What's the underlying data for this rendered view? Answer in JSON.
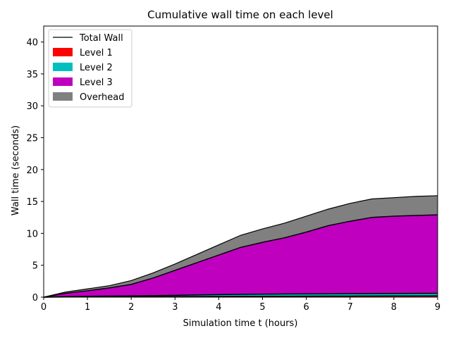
{
  "chart_data": {
    "type": "area",
    "title": "Cumulative wall time on each level",
    "xlabel": "Simulation time t (hours)",
    "ylabel": "Wall time (seconds)",
    "xlim": [
      0,
      9
    ],
    "ylim": [
      0,
      42.5
    ],
    "xticks": [
      0,
      1,
      2,
      3,
      4,
      5,
      6,
      7,
      8,
      9
    ],
    "yticks": [
      0,
      5,
      10,
      15,
      20,
      25,
      30,
      35,
      40
    ],
    "grid": false,
    "legend_position": "upper-left",
    "stacked": true,
    "x": [
      0,
      0.5,
      1,
      1.5,
      2,
      2.5,
      3,
      3.5,
      4,
      4.5,
      5,
      5.5,
      6,
      6.5,
      7,
      7.5,
      8,
      8.5,
      9
    ],
    "series": [
      {
        "name": "Level 1",
        "color": "#ff0000",
        "values": [
          0,
          0.03,
          0.05,
          0.06,
          0.07,
          0.08,
          0.09,
          0.1,
          0.11,
          0.12,
          0.13,
          0.14,
          0.15,
          0.16,
          0.17,
          0.18,
          0.19,
          0.2,
          0.21
        ]
      },
      {
        "name": "Level 2",
        "color": "#00bfbf",
        "values": [
          0,
          0.05,
          0.08,
          0.1,
          0.13,
          0.15,
          0.2,
          0.25,
          0.29,
          0.32,
          0.34,
          0.35,
          0.36,
          0.37,
          0.38,
          0.38,
          0.39,
          0.39,
          0.39
        ]
      },
      {
        "name": "Level 3",
        "color": "#bf00bf",
        "values": [
          0,
          0.52,
          0.87,
          1.29,
          1.8,
          2.77,
          3.91,
          5.05,
          6.2,
          7.36,
          8.13,
          8.81,
          9.69,
          10.67,
          11.35,
          11.94,
          12.12,
          12.21,
          12.3
        ]
      },
      {
        "name": "Overhead",
        "color": "#808080",
        "values": [
          0,
          0.2,
          0.3,
          0.35,
          0.6,
          0.8,
          1.0,
          1.3,
          1.6,
          1.9,
          2.1,
          2.3,
          2.5,
          2.6,
          2.8,
          2.9,
          2.9,
          3.0,
          3.0
        ]
      }
    ],
    "total_line": {
      "name": "Total Wall",
      "color": "#000000"
    },
    "legend_entries": [
      "Total Wall",
      "Level 1",
      "Level 2",
      "Level 3",
      "Overhead"
    ]
  }
}
